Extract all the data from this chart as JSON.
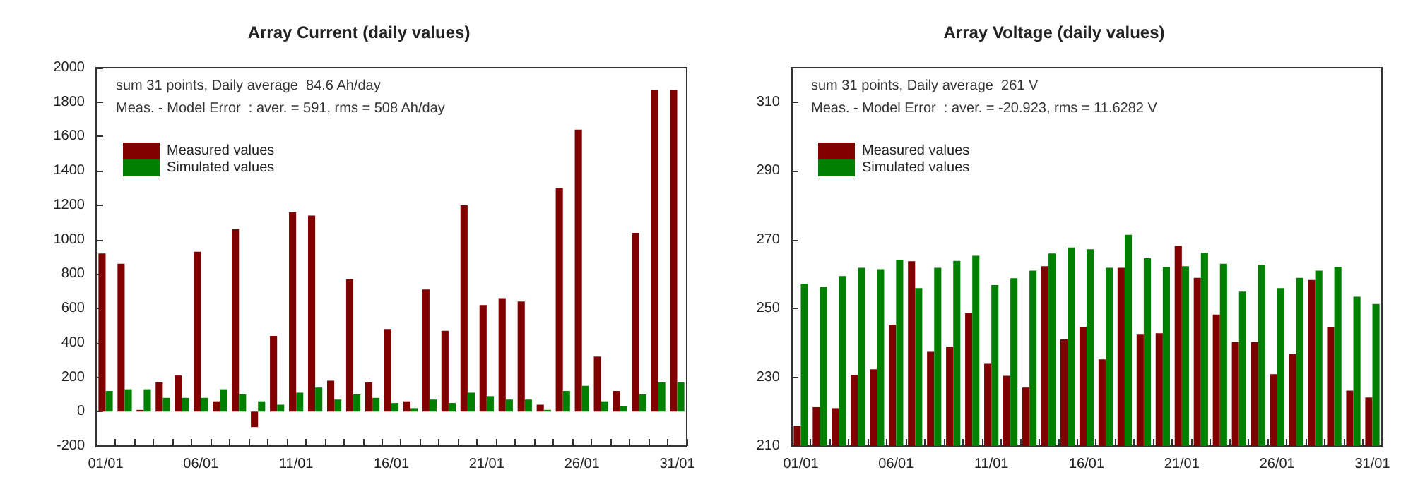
{
  "chart_data": [
    {
      "type": "bar",
      "title": "Array Current (daily values)",
      "categories": [
        "01/01",
        null,
        null,
        null,
        null,
        "06/01",
        null,
        null,
        null,
        null,
        "11/01",
        null,
        null,
        null,
        null,
        "16/01",
        null,
        null,
        null,
        null,
        "21/01",
        null,
        null,
        null,
        null,
        "26/01",
        null,
        null,
        null,
        null,
        "31/01"
      ],
      "series": [
        {
          "name": "Measured values",
          "color": "#800000",
          "values": [
            920,
            860,
            10,
            170,
            210,
            930,
            60,
            1060,
            -90,
            440,
            1160,
            1140,
            180,
            770,
            170,
            480,
            60,
            710,
            470,
            1200,
            620,
            660,
            640,
            40,
            1300,
            1640,
            320,
            120,
            1040,
            1870,
            1870
          ]
        },
        {
          "name": "Simulated values",
          "color": "#008000",
          "values": [
            120,
            130,
            130,
            80,
            80,
            80,
            130,
            100,
            60,
            40,
            110,
            140,
            70,
            100,
            80,
            50,
            20,
            70,
            50,
            110,
            90,
            70,
            70,
            10,
            120,
            150,
            60,
            30,
            100,
            170,
            170
          ]
        }
      ],
      "ylim": [
        -200,
        2000
      ],
      "yticks": [
        -200,
        0,
        200,
        400,
        600,
        800,
        1000,
        1200,
        1400,
        1600,
        1800,
        2000
      ],
      "grid": false,
      "legend": "top left",
      "annotations": [
        "sum 31 points, Daily average  84.6 Ah/day",
        "Meas. - Model Error  : aver. = 591, rms = 508 Ah/day"
      ]
    },
    {
      "type": "bar",
      "title": "Array Voltage (daily values)",
      "categories": [
        "01/01",
        null,
        null,
        null,
        null,
        "06/01",
        null,
        null,
        null,
        null,
        "11/01",
        null,
        null,
        null,
        null,
        "16/01",
        null,
        null,
        null,
        null,
        "21/01",
        null,
        null,
        null,
        null,
        "26/01",
        null,
        null,
        null,
        null,
        "31/01"
      ],
      "series": [
        {
          "name": "Measured values",
          "color": "#800000",
          "values": [
            215.9,
            221.3,
            221,
            230.7,
            232.3,
            245.3,
            263.7,
            237.4,
            238.9,
            248.6,
            233.9,
            230.4,
            227,
            262.3,
            241,
            244.7,
            235.2,
            261.8,
            242.6,
            242.8,
            268.2,
            258.9,
            248.2,
            240.2,
            240.2,
            230.9,
            236.7,
            258.3,
            244.5,
            226.1,
            224.1
          ]
        },
        {
          "name": "Simulated values",
          "color": "#008000",
          "values": [
            257.2,
            256.3,
            259.4,
            261.8,
            261.4,
            264.2,
            255.9,
            261.8,
            263.8,
            265.3,
            256.8,
            258.8,
            261,
            266,
            267.7,
            267.2,
            261.8,
            271.4,
            264.6,
            262.1,
            262.3,
            266.2,
            263,
            254.9,
            262.7,
            255.9,
            258.9,
            261,
            262.1,
            253.4,
            251.3
          ]
        }
      ],
      "ylim": [
        210,
        320
      ],
      "yticks": [
        210,
        230,
        250,
        270,
        290,
        310
      ],
      "grid": false,
      "legend": "top left",
      "annotations": [
        "sum 31 points, Daily average  261 V",
        "Meas. - Model Error  : aver. = -20.923, rms = 11.6282 V"
      ]
    }
  ]
}
